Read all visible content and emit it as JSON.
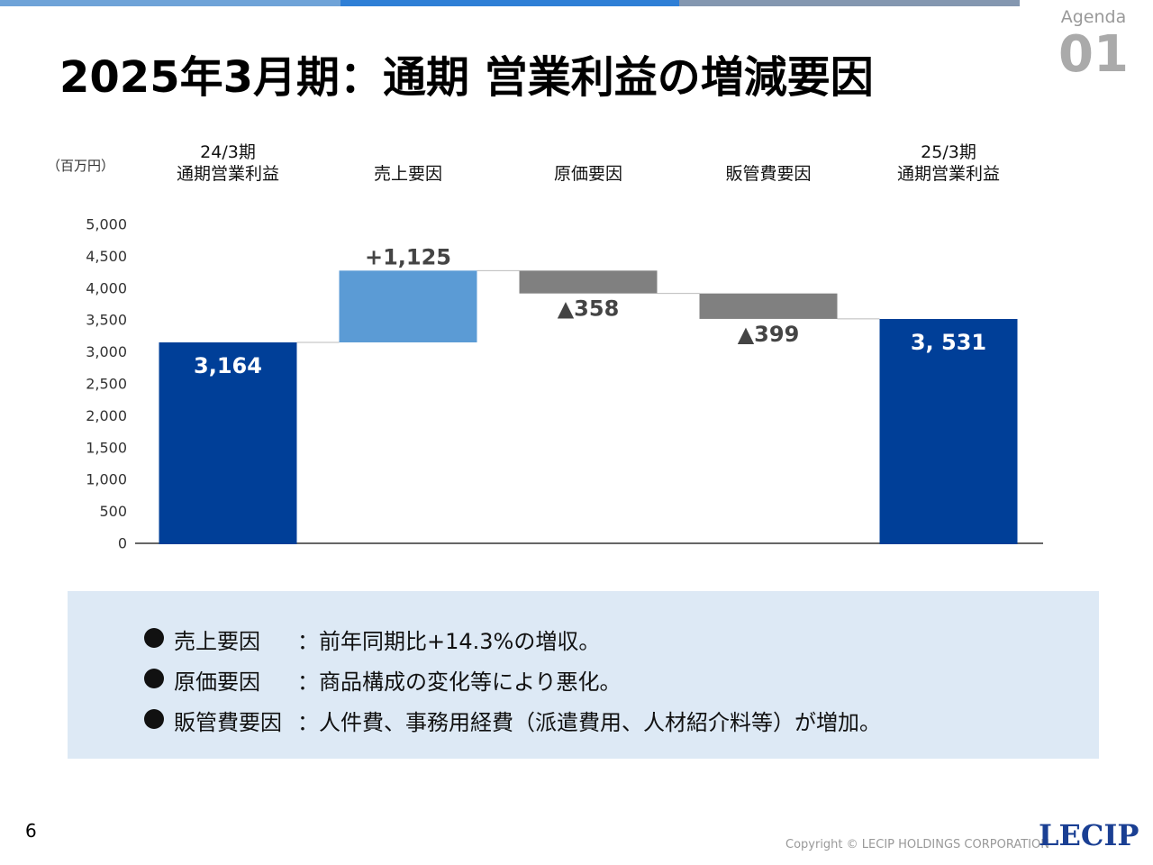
{
  "header": {
    "title": "2025年3月期：通期 営業利益の増減要因",
    "agenda_label": "Agenda",
    "agenda_number": "01"
  },
  "chart_data": {
    "type": "waterfall",
    "unit_label": "（百万円）",
    "categories": [
      "24/3期\n通期営業利益",
      "売上要因",
      "原価要因",
      "販管費要因",
      "25/3期\n通期営業利益"
    ],
    "values": [
      3164,
      1125,
      -358,
      -399,
      3531
    ],
    "value_labels": [
      "3,164",
      "+1,125",
      "▲358",
      "▲399",
      "3, 531"
    ],
    "measures": [
      "absolute",
      "relative",
      "relative",
      "relative",
      "absolute"
    ],
    "colors": [
      "#003f98",
      "#5b9bd5",
      "#808080",
      "#808080",
      "#003f98"
    ],
    "ylim": [
      0,
      5000
    ],
    "yticks": [
      0,
      500,
      {
        "value": 1000,
        "label": "1,000"
      },
      {
        "value": 1500,
        "label": "1,500"
      },
      {
        "value": 2000,
        "label": "2,000"
      },
      {
        "value": 2500,
        "label": "2,500"
      },
      {
        "value": 3000,
        "label": "3,000"
      },
      {
        "value": 3500,
        "label": "3,500"
      },
      {
        "value": 4000,
        "label": "4,000"
      },
      {
        "value": 4500,
        "label": "4,500"
      },
      {
        "value": 5000,
        "label": "5,000"
      }
    ]
  },
  "notes": [
    {
      "label": "売上要因",
      "text": "：前年同期比+14.3%の増収。"
    },
    {
      "label": "原価要因",
      "text": "：商品構成の変化等により悪化。"
    },
    {
      "label": "販管費要因",
      "text": "：人件費、事務用経費（派遣費用、人材紹介料等）が増加。"
    }
  ],
  "footer": {
    "page_number": "6",
    "copyright": "Copyright © LECIP HOLDINGS CORPORATION",
    "logo": "LECIP"
  }
}
